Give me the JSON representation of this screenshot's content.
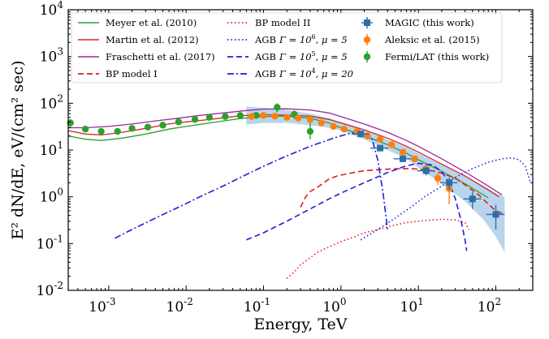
{
  "chart_data": {
    "type": "scatter",
    "xlabel": "Energy, TeV",
    "ylabel": "E² dN/dE, eV/(cm² sec)",
    "x_scale": "log",
    "y_scale": "log",
    "xlim": [
      0.0003,
      300
    ],
    "ylim": [
      0.01,
      10000
    ],
    "x_ticks": [
      {
        "base": "10",
        "exp": "-3",
        "value": 0.001
      },
      {
        "base": "10",
        "exp": "-2",
        "value": 0.01
      },
      {
        "base": "10",
        "exp": "-1",
        "value": 0.1
      },
      {
        "base": "10",
        "exp": "0",
        "value": 1
      },
      {
        "base": "10",
        "exp": "1",
        "value": 10
      },
      {
        "base": "10",
        "exp": "2",
        "value": 100
      }
    ],
    "y_ticks": [
      {
        "base": "10",
        "exp": "-2",
        "value": 0.01
      },
      {
        "base": "10",
        "exp": "-1",
        "value": 0.1
      },
      {
        "base": "10",
        "exp": "0",
        "value": 1
      },
      {
        "base": "10",
        "exp": "1",
        "value": 10
      },
      {
        "base": "10",
        "exp": "2",
        "value": 100
      },
      {
        "base": "10",
        "exp": "3",
        "value": 1000
      },
      {
        "base": "10",
        "exp": "4",
        "value": 10000
      }
    ],
    "grid": false,
    "legend": {
      "placement": "top",
      "entries": [
        {
          "name": "Meyer et al. (2010)",
          "color": "#2ca02c",
          "style": "solid"
        },
        {
          "name": "Martin et al. (2012)",
          "color": "#d62728",
          "style": "solid"
        },
        {
          "name": "Fraschetti et al. (2017)",
          "color": "#9a2a9a",
          "style": "solid"
        },
        {
          "name": "BP model I",
          "color": "#e31a1c",
          "style": "dashed"
        },
        {
          "name": "BP model II",
          "color": "#e31a1c",
          "style": "dotted"
        },
        {
          "name": "AGB",
          "math": "Γ = 10",
          "sup": "6",
          "tail": ", μ = 5",
          "color": "#1f1fd9",
          "style": "dotted"
        },
        {
          "name": "AGB",
          "math": "Γ = 10",
          "sup": "5",
          "tail": ", μ = 5",
          "color": "#1f1fd9",
          "style": "dashed"
        },
        {
          "name": "AGB",
          "math": "Γ = 10",
          "sup": "4",
          "tail": ", μ = 20",
          "color": "#1f1fd9",
          "style": "dashdot"
        },
        {
          "name": "MAGIC (this work)",
          "color": "#2a6fa8",
          "style": "marker-square"
        },
        {
          "name": "Aleksic et al. (2015)",
          "color": "#ff7f0e",
          "style": "marker-circle"
        },
        {
          "name": "Fermi/LAT (this work)",
          "color": "#2ca02c",
          "style": "marker-circle"
        }
      ]
    },
    "series": [
      {
        "name": "Meyer et al. (2010)",
        "color": "#2ca02c",
        "style": "solid",
        "x": [
          0.0003,
          0.0005,
          0.0008,
          0.0015,
          0.003,
          0.006,
          0.01,
          0.02,
          0.05,
          0.1,
          0.2,
          0.4,
          0.7,
          1,
          2,
          4,
          7,
          10,
          20,
          40,
          80
        ],
        "y": [
          20,
          17,
          16,
          18,
          22,
          28,
          32,
          38,
          47,
          52,
          53,
          48,
          38,
          30,
          20,
          13,
          8.5,
          6.2,
          3.5,
          1.9,
          0.95
        ]
      },
      {
        "name": "Martin et al. (2012)",
        "color": "#d62728",
        "style": "solid",
        "x": [
          0.0003,
          0.0005,
          0.0008,
          0.0015,
          0.003,
          0.006,
          0.01,
          0.02,
          0.05,
          0.1,
          0.2,
          0.4,
          0.7,
          1,
          2,
          4,
          7,
          10,
          20,
          40,
          80,
          110
        ],
        "y": [
          26,
          22,
          21,
          24,
          29,
          36,
          40,
          45,
          54,
          57,
          56,
          53,
          45,
          38,
          27,
          18,
          12,
          9,
          5,
          2.8,
          1.4,
          1.0
        ]
      },
      {
        "name": "Fraschetti et al. (2017)",
        "color": "#9a2a9a",
        "style": "solid",
        "x": [
          0.0003,
          0.0005,
          0.001,
          0.002,
          0.004,
          0.008,
          0.015,
          0.03,
          0.06,
          0.1,
          0.2,
          0.4,
          0.7,
          1,
          2,
          4,
          7,
          10,
          20,
          40,
          80,
          120
        ],
        "y": [
          30,
          30,
          32,
          36,
          42,
          48,
          55,
          62,
          70,
          75,
          76,
          72,
          62,
          52,
          36,
          24,
          16,
          12,
          6.5,
          3.4,
          1.7,
          1.1
        ]
      },
      {
        "name": "BP model I",
        "color": "#e31a1c",
        "style": "dashed",
        "x": [
          0.3,
          0.35,
          0.4,
          0.5,
          0.6,
          0.7,
          0.9,
          1.2,
          1.6,
          2,
          3,
          4,
          6,
          8,
          10,
          15,
          20,
          30,
          40,
          60,
          80,
          100,
          130
        ],
        "y": [
          0.6,
          1.0,
          1.3,
          1.6,
          2.0,
          2.4,
          2.8,
          3.1,
          3.4,
          3.6,
          3.8,
          3.9,
          4.0,
          4.0,
          3.9,
          3.6,
          3.2,
          2.5,
          1.8,
          1.1,
          0.7,
          0.5,
          0.42
        ]
      },
      {
        "name": "BP model II",
        "color": "#e31a1c",
        "style": "dotted",
        "x": [
          0.2,
          0.25,
          0.3,
          0.4,
          0.5,
          0.7,
          1,
          1.5,
          2,
          3,
          5,
          7,
          10,
          15,
          20,
          30,
          40,
          45
        ],
        "y": [
          0.018,
          0.025,
          0.035,
          0.05,
          0.065,
          0.085,
          0.11,
          0.14,
          0.17,
          0.2,
          0.25,
          0.28,
          0.3,
          0.32,
          0.33,
          0.32,
          0.28,
          0.2
        ]
      },
      {
        "name": "AGB Γ=10^6, μ=5",
        "color": "#1f1fd9",
        "style": "dotted",
        "x": [
          1.8,
          3,
          5,
          8,
          12,
          20,
          30,
          50,
          80,
          120,
          160,
          200,
          240,
          280
        ],
        "y": [
          0.12,
          0.2,
          0.35,
          0.6,
          1.0,
          1.7,
          2.6,
          4.0,
          5.5,
          6.5,
          6.8,
          6.2,
          4.5,
          2.0
        ]
      },
      {
        "name": "AGB Γ=10^5, μ=5",
        "color": "#1f1fd9",
        "style": "dashed",
        "x": [
          0.06,
          0.1,
          0.2,
          0.4,
          0.7,
          1,
          2,
          4,
          7,
          10,
          15,
          20,
          25,
          30,
          35,
          40,
          42
        ],
        "y": [
          0.12,
          0.17,
          0.3,
          0.55,
          0.9,
          1.2,
          2.0,
          3.3,
          4.6,
          5.2,
          4.8,
          3.5,
          2.0,
          0.9,
          0.35,
          0.12,
          0.07
        ]
      },
      {
        "name": "AGB Γ=10^4, μ=20",
        "color": "#1f1fd9",
        "style": "dashdot",
        "x": [
          0.0012,
          0.002,
          0.004,
          0.008,
          0.015,
          0.03,
          0.06,
          0.1,
          0.2,
          0.4,
          0.8,
          1.2,
          1.8,
          2.5,
          3,
          3.5,
          4
        ],
        "y": [
          0.13,
          0.2,
          0.35,
          0.6,
          1.0,
          1.7,
          3.0,
          4.5,
          7.5,
          12,
          18,
          22,
          25,
          18,
          6,
          1.2,
          0.2
        ]
      }
    ],
    "points": [
      {
        "name": "Fermi/LAT (this work)",
        "color": "#2ca02c",
        "marker": "circle",
        "x": [
          0.00032,
          0.0005,
          0.0008,
          0.0013,
          0.002,
          0.0032,
          0.005,
          0.008,
          0.013,
          0.02,
          0.032,
          0.05,
          0.08,
          0.15,
          0.25,
          0.4
        ],
        "y": [
          38,
          28,
          25,
          25,
          29,
          31,
          34,
          40,
          45,
          50,
          52,
          55,
          55,
          82,
          58,
          25
        ],
        "y_err_low": [
          8,
          4,
          3,
          2,
          2,
          2,
          2,
          3,
          3,
          4,
          5,
          6,
          8,
          18,
          12,
          8
        ],
        "y_err_high": [
          8,
          4,
          3,
          2,
          2,
          2,
          2,
          3,
          3,
          4,
          5,
          6,
          8,
          18,
          12,
          30
        ]
      },
      {
        "name": "Aleksic et al. (2015)",
        "color": "#ff7f0e",
        "marker": "circle",
        "x": [
          0.07,
          0.1,
          0.14,
          0.2,
          0.28,
          0.4,
          0.56,
          0.8,
          1.1,
          1.6,
          2.2,
          3.2,
          4.5,
          6.3,
          9,
          12.5,
          17.8,
          25
        ],
        "y": [
          52,
          55,
          53,
          50,
          48,
          45,
          38,
          32,
          28,
          25,
          20,
          17,
          13,
          9,
          6.5,
          4,
          2.5,
          1.5
        ],
        "y_err_low": [
          6,
          5,
          5,
          4,
          4,
          4,
          3,
          3,
          3,
          2,
          2,
          2,
          1.5,
          1.0,
          1.0,
          0.8,
          0.7,
          0.8
        ],
        "y_err_high": [
          6,
          5,
          5,
          4,
          4,
          4,
          3,
          3,
          3,
          2,
          2,
          2,
          1.5,
          1.0,
          1.0,
          0.8,
          0.7,
          0.8
        ]
      },
      {
        "name": "MAGIC (this work)",
        "color": "#2a6fa8",
        "marker": "square",
        "x": [
          1.8,
          3.2,
          6.3,
          12.6,
          25,
          50,
          100
        ],
        "y": [
          22,
          11,
          6.5,
          3.6,
          2.0,
          0.9,
          0.42
        ],
        "x_err_low": [
          0.4,
          0.8,
          1.5,
          3,
          6,
          12,
          25
        ],
        "x_err_high": [
          0.5,
          0.9,
          1.8,
          3.5,
          7,
          15,
          30
        ],
        "y_err_low": [
          3,
          1.5,
          1.0,
          0.7,
          0.6,
          0.35,
          0.22
        ],
        "y_err_high": [
          3,
          1.5,
          1.0,
          0.7,
          0.6,
          0.35,
          0.25
        ]
      }
    ],
    "band": {
      "name": "MAGIC systematic band",
      "color": "#7fb2dd",
      "x": [
        0.06,
        0.1,
        0.2,
        0.4,
        0.7,
        1,
        2,
        4,
        7,
        10,
        20,
        40,
        70,
        100,
        130
      ],
      "y_low": [
        35,
        38,
        38,
        34,
        30,
        26,
        17,
        10,
        6.5,
        4.2,
        1.9,
        0.8,
        0.32,
        0.14,
        0.065
      ],
      "y_high": [
        85,
        80,
        72,
        60,
        48,
        40,
        28,
        17,
        11.5,
        8.5,
        4.8,
        2.8,
        1.7,
        1.2,
        1.0
      ]
    }
  }
}
